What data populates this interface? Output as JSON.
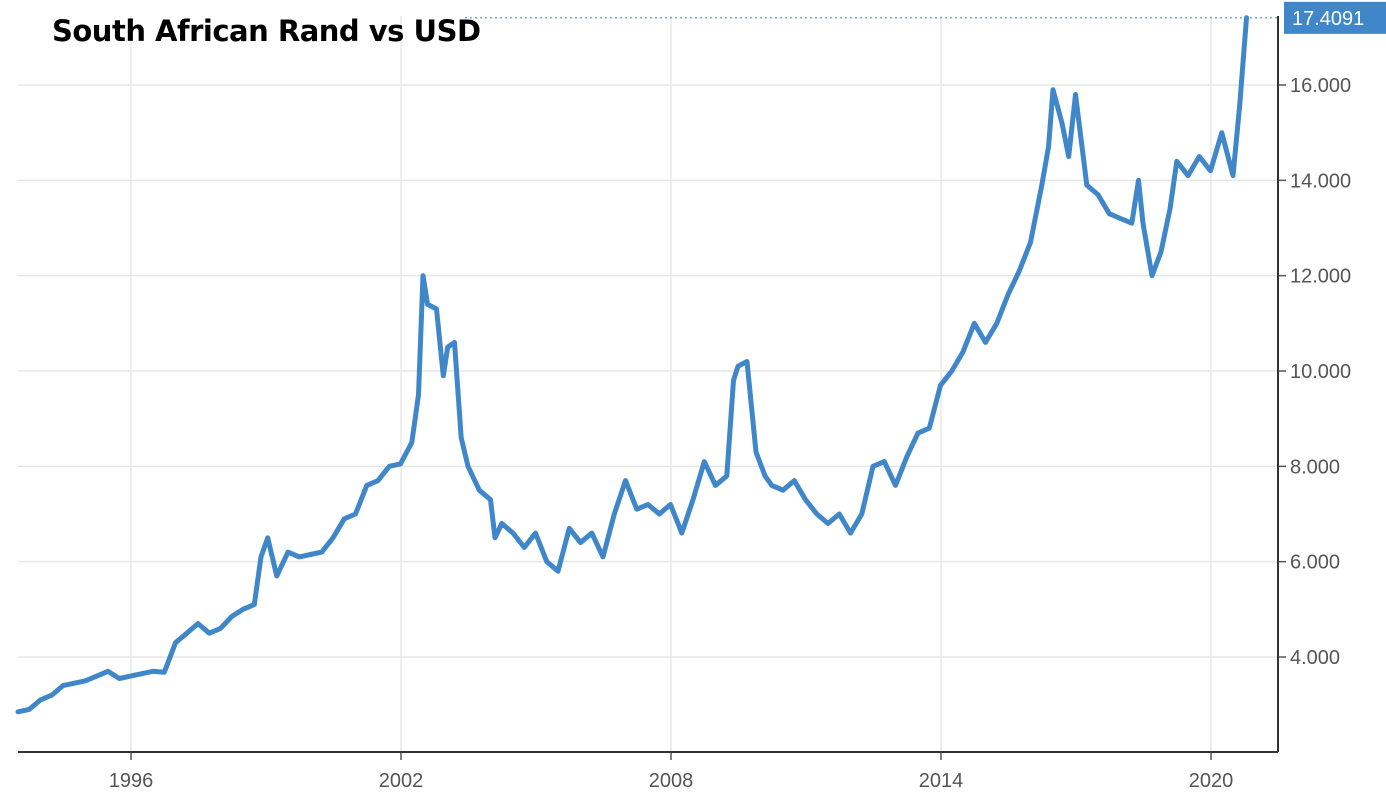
{
  "chart_data": {
    "type": "line",
    "title": "South African Rand vs USD",
    "xlabel": "",
    "ylabel": "",
    "xlim": [
      1993.0,
      2021.0
    ],
    "ylim": [
      2.0,
      17.4091
    ],
    "x_ticks": [
      1996,
      2002,
      2008,
      2014,
      2020
    ],
    "x_tick_labels": [
      "1996",
      "2002",
      "2008",
      "2014",
      "2020"
    ],
    "y_ticks": [
      4,
      6,
      8,
      10,
      12,
      14,
      16
    ],
    "y_tick_labels": [
      "4.000",
      "6.000",
      "8.000",
      "10.000",
      "12.000",
      "14.000",
      "16.000"
    ],
    "last_value_label": "17.4091",
    "grid": true,
    "line_color": "#3f87c9",
    "series": [
      {
        "x": [
          1993.0,
          1993.25,
          1993.5,
          1993.75,
          1994.0,
          1994.25,
          1994.5,
          1994.75,
          1995.0,
          1995.25,
          1995.5,
          1995.75,
          1996.0,
          1996.25,
          1996.5,
          1996.75,
          1997.0,
          1997.25,
          1997.5,
          1997.75,
          1998.0,
          1998.25,
          1998.4,
          1998.55,
          1998.75,
          1999.0,
          1999.25,
          1999.5,
          1999.75,
          2000.0,
          2000.25,
          2000.5,
          2000.75,
          2001.0,
          2001.25,
          2001.5,
          2001.75,
          2001.9,
          2002.0,
          2002.1,
          2002.3,
          2002.45,
          2002.55,
          2002.7,
          2002.85,
          2003.0,
          2003.25,
          2003.5,
          2003.6,
          2003.75,
          2004.0,
          2004.25,
          2004.5,
          2004.75,
          2005.0,
          2005.25,
          2005.5,
          2005.75,
          2006.0,
          2006.25,
          2006.5,
          2006.75,
          2007.0,
          2007.25,
          2007.5,
          2007.75,
          2008.0,
          2008.25,
          2008.5,
          2008.75,
          2008.9,
          2009.0,
          2009.2,
          2009.4,
          2009.6,
          2009.75,
          2010.0,
          2010.25,
          2010.5,
          2010.75,
          2011.0,
          2011.25,
          2011.5,
          2011.75,
          2012.0,
          2012.25,
          2012.5,
          2012.75,
          2013.0,
          2013.25,
          2013.5,
          2013.75,
          2014.0,
          2014.25,
          2014.5,
          2014.75,
          2015.0,
          2015.25,
          2015.5,
          2015.75,
          2015.9,
          2016.0,
          2016.2,
          2016.35,
          2016.5,
          2016.75,
          2017.0,
          2017.25,
          2017.5,
          2017.75,
          2017.9,
          2018.0,
          2018.2,
          2018.4,
          2018.6,
          2018.75,
          2019.0,
          2019.25,
          2019.5,
          2019.75,
          2020.0,
          2020.15,
          2020.3
        ],
        "values": [
          2.85,
          2.9,
          3.1,
          3.2,
          3.4,
          3.45,
          3.5,
          3.6,
          3.7,
          3.55,
          3.6,
          3.65,
          3.7,
          3.68,
          4.3,
          4.5,
          4.7,
          4.5,
          4.6,
          4.85,
          5.0,
          5.1,
          6.1,
          6.5,
          5.7,
          6.2,
          6.1,
          6.15,
          6.2,
          6.5,
          6.9,
          7.0,
          7.6,
          7.7,
          8.0,
          8.05,
          8.5,
          9.5,
          12.0,
          11.4,
          11.3,
          9.9,
          10.5,
          10.6,
          8.6,
          8.0,
          7.5,
          7.3,
          6.5,
          6.8,
          6.6,
          6.3,
          6.6,
          6.0,
          5.8,
          6.7,
          6.4,
          6.6,
          6.1,
          7.0,
          7.7,
          7.1,
          7.2,
          7.0,
          7.2,
          6.6,
          7.3,
          8.1,
          7.6,
          7.8,
          9.8,
          10.1,
          10.2,
          8.3,
          7.8,
          7.6,
          7.5,
          7.7,
          7.3,
          7.0,
          6.8,
          7.0,
          6.6,
          7.0,
          8.0,
          8.1,
          7.6,
          8.2,
          8.7,
          8.8,
          9.7,
          10.0,
          10.4,
          11.0,
          10.6,
          11.0,
          11.6,
          12.1,
          12.7,
          13.9,
          14.7,
          15.9,
          15.2,
          14.5,
          15.8,
          13.9,
          13.7,
          13.3,
          13.2,
          13.1,
          14.0,
          13.1,
          12.0,
          12.5,
          13.4,
          14.4,
          14.1,
          14.5,
          14.2,
          15.0,
          14.1,
          15.6,
          17.4091
        ]
      }
    ]
  }
}
